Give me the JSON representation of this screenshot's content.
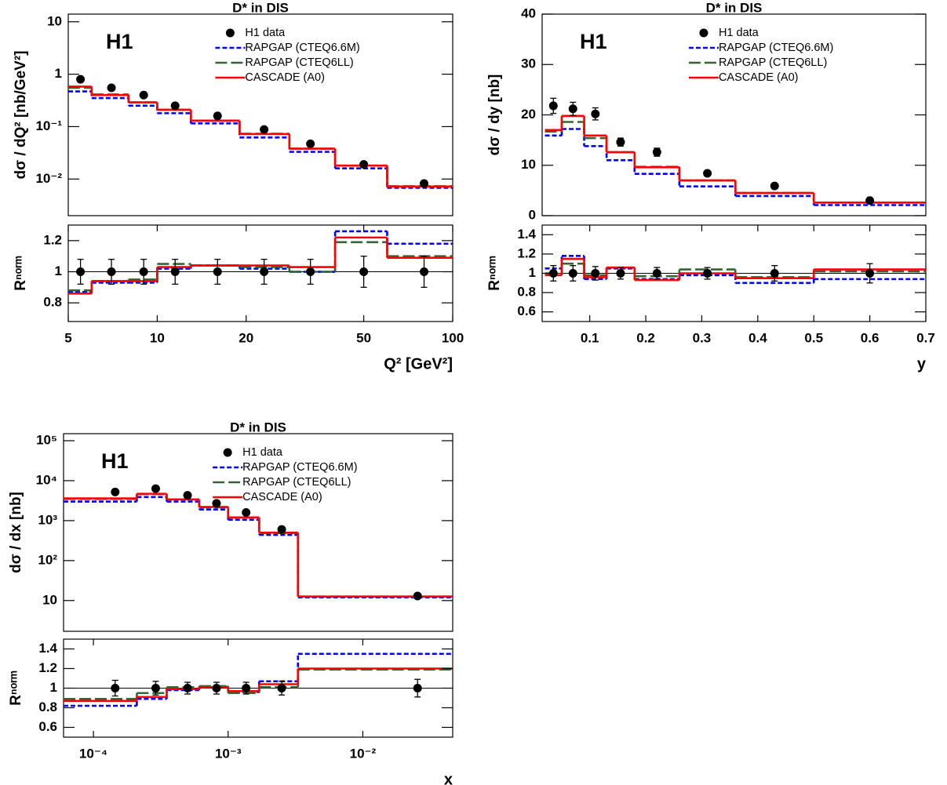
{
  "chart_data": [
    {
      "type": "histogram",
      "title": "D* in DIS",
      "label": "H1",
      "ylabel": "dσ / dQ² [nb/GeV²]",
      "xlog": true,
      "ylog": true,
      "xlim": [
        5,
        100
      ],
      "ylim": [
        0.002,
        14
      ],
      "yticks": [
        {
          "value": 0.01,
          "label": "10⁻²"
        },
        {
          "value": 0.1,
          "label": "10⁻¹"
        },
        1,
        10
      ],
      "legend": "top-right",
      "bins": [
        5,
        6,
        8,
        10,
        13,
        19,
        28,
        40,
        60,
        100
      ],
      "points": {
        "name": "H1 data",
        "color": "#000000",
        "x": [
          5.5,
          7,
          9,
          11.5,
          16,
          23,
          33,
          50,
          80
        ],
        "values": [
          0.8,
          0.55,
          0.4,
          0.25,
          0.16,
          0.088,
          0.047,
          0.019,
          0.0082
        ],
        "errors": [
          0.06,
          0.04,
          0.03,
          0.02,
          0.012,
          0.007,
          0.004,
          0.0015,
          0.0007
        ]
      },
      "series": [
        {
          "name": "RAPGAP (CTEQ6.6M)",
          "color": "#0000ff",
          "dash": "short",
          "values": [
            0.47,
            0.35,
            0.25,
            0.18,
            0.115,
            0.062,
            0.033,
            0.016,
            0.0068
          ]
        },
        {
          "name": "RAPGAP (CTEQ6LL)",
          "color": "#336633",
          "dash": "long",
          "values": [
            0.55,
            0.41,
            0.29,
            0.21,
            0.13,
            0.073,
            0.038,
            0.018,
            0.0073
          ]
        },
        {
          "name": "CASCADE (A0)",
          "color": "#ff0000",
          "dash": "solid",
          "values": [
            0.58,
            0.4,
            0.29,
            0.21,
            0.13,
            0.072,
            0.038,
            0.018,
            0.0072
          ]
        }
      ]
    },
    {
      "type": "histogram",
      "ylabel": "Rⁿᵒʳᵐ",
      "xlabel": "Q² [GeV²]",
      "xlog": true,
      "ylog": false,
      "xlim": [
        5,
        100
      ],
      "ylim": [
        0.68,
        1.3
      ],
      "xticks": [
        5,
        10,
        20,
        50,
        100
      ],
      "yticks": [
        0.8,
        1,
        1.2
      ],
      "hline": 1,
      "bins": [
        5,
        6,
        8,
        10,
        13,
        19,
        28,
        40,
        60,
        100
      ],
      "points": {
        "color": "#000000",
        "x": [
          5.5,
          7,
          9,
          11.5,
          16,
          23,
          33,
          50,
          80
        ],
        "values": [
          1,
          1,
          1,
          1,
          1,
          1,
          1,
          1,
          1
        ],
        "errors": [
          0.08,
          0.08,
          0.08,
          0.08,
          0.08,
          0.08,
          0.08,
          0.1,
          0.1
        ]
      },
      "series": [
        {
          "color": "#0000ff",
          "dash": "short",
          "values": [
            0.87,
            0.93,
            0.93,
            1.02,
            1.04,
            1.02,
            1.0,
            1.26,
            1.18
          ]
        },
        {
          "color": "#336633",
          "dash": "long",
          "values": [
            0.88,
            0.94,
            0.95,
            1.05,
            1.04,
            1.03,
            1.0,
            1.19,
            1.1
          ]
        },
        {
          "color": "#ff0000",
          "dash": "solid",
          "values": [
            0.86,
            0.94,
            0.94,
            1.03,
            1.04,
            1.04,
            1.03,
            1.22,
            1.09
          ]
        }
      ]
    },
    {
      "type": "histogram",
      "title": "D* in DIS",
      "label": "H1",
      "ylabel": "dσ / dy [nb]",
      "xlog": false,
      "ylog": false,
      "xlim": [
        0.015,
        0.7
      ],
      "ylim": [
        0,
        40
      ],
      "yticks": [
        0,
        10,
        20,
        30,
        40
      ],
      "legend": "top-right",
      "bins": [
        0.02,
        0.05,
        0.09,
        0.13,
        0.18,
        0.26,
        0.36,
        0.5,
        0.7
      ],
      "points": {
        "name": "H1 data",
        "color": "#000000",
        "x": [
          0.035,
          0.07,
          0.11,
          0.155,
          0.22,
          0.31,
          0.43,
          0.6
        ],
        "values": [
          21.8,
          21.2,
          20.2,
          14.6,
          12.6,
          8.4,
          5.9,
          3.0
        ],
        "errors": [
          1.5,
          1.3,
          1.2,
          0.8,
          0.8,
          0.4,
          0.4,
          0.3
        ]
      },
      "series": [
        {
          "name": "RAPGAP (CTEQ6.6M)",
          "color": "#0000ff",
          "dash": "short",
          "values": [
            15.9,
            17.2,
            13.8,
            11.0,
            8.3,
            5.8,
            3.9,
            2.1
          ]
        },
        {
          "name": "RAPGAP (CTEQ6LL)",
          "color": "#336633",
          "dash": "long",
          "values": [
            16.7,
            18.6,
            15.4,
            12.6,
            9.7,
            7.0,
            4.5,
            2.6
          ]
        },
        {
          "name": "CASCADE (A0)",
          "color": "#ff0000",
          "dash": "solid",
          "values": [
            17.0,
            19.8,
            15.9,
            12.6,
            9.6,
            7.0,
            4.5,
            2.6
          ]
        }
      ]
    },
    {
      "type": "histogram",
      "ylabel": "Rⁿᵒʳᵐ",
      "xlabel": "y",
      "xlog": false,
      "ylog": false,
      "xlim": [
        0.015,
        0.7
      ],
      "ylim": [
        0.5,
        1.5
      ],
      "xticks": [
        0.1,
        0.2,
        0.3,
        0.4,
        0.5,
        0.6,
        0.7
      ],
      "yticks": [
        0.6,
        0.8,
        1,
        1.2,
        1.4
      ],
      "hline": 1,
      "bins": [
        0.02,
        0.05,
        0.09,
        0.13,
        0.18,
        0.26,
        0.36,
        0.5,
        0.7
      ],
      "points": {
        "color": "#000000",
        "x": [
          0.035,
          0.07,
          0.11,
          0.155,
          0.22,
          0.31,
          0.43,
          0.6
        ],
        "values": [
          1,
          1,
          1,
          1,
          1,
          1,
          1,
          1
        ],
        "errors": [
          0.08,
          0.08,
          0.07,
          0.06,
          0.06,
          0.06,
          0.08,
          0.1
        ]
      },
      "series": [
        {
          "color": "#0000ff",
          "dash": "short",
          "values": [
            1.05,
            1.18,
            0.94,
            1.05,
            0.94,
            0.98,
            0.9,
            0.94
          ]
        },
        {
          "color": "#336633",
          "dash": "long",
          "values": [
            1.0,
            1.1,
            0.98,
            1.06,
            0.97,
            1.04,
            0.96,
            1.02
          ]
        },
        {
          "color": "#ff0000",
          "dash": "solid",
          "values": [
            0.98,
            1.15,
            0.96,
            1.06,
            0.93,
            1.0,
            0.95,
            1.04
          ]
        }
      ]
    },
    {
      "type": "histogram",
      "title": "D* in DIS",
      "label": "H1",
      "ylabel": "dσ / dx [nb]",
      "xlog": true,
      "ylog": true,
      "xlim": [
        6e-05,
        0.0465
      ],
      "ylim": [
        1.7,
        150000
      ],
      "yticks": [
        10,
        {
          "value": 100,
          "label": "10²"
        },
        {
          "value": 1000,
          "label": "10³"
        },
        {
          "value": 10000,
          "label": "10⁴"
        },
        {
          "value": 100000,
          "label": "10⁵"
        }
      ],
      "legend": "top-right",
      "bins": [
        6e-05,
        0.00021,
        0.00035,
        0.00061,
        0.001,
        0.0017,
        0.0033,
        0.0465
      ],
      "points": {
        "name": "H1 data",
        "color": "#000000",
        "x": [
          0.000145,
          0.00029,
          0.0005,
          0.00082,
          0.00136,
          0.0025,
          0.0255
        ],
        "values": [
          5200,
          6300,
          4300,
          2700,
          1600,
          600,
          13
        ],
        "errors": [
          400,
          450,
          300,
          200,
          120,
          50,
          1.2
        ]
      },
      "series": [
        {
          "name": "RAPGAP (CTEQ6.6M)",
          "color": "#0000ff",
          "dash": "short",
          "values": [
            3000,
            3900,
            3000,
            1900,
            1050,
            440,
            12
          ]
        },
        {
          "name": "RAPGAP (CTEQ6LL)",
          "color": "#336633",
          "dash": "long",
          "values": [
            3500,
            4600,
            3400,
            2150,
            1200,
            490,
            12.6
          ]
        },
        {
          "name": "CASCADE (A0)",
          "color": "#ff0000",
          "dash": "solid",
          "values": [
            3600,
            4700,
            3400,
            2200,
            1200,
            500,
            12.6
          ]
        }
      ]
    },
    {
      "type": "histogram",
      "ylabel": "Rⁿᵒʳᵐ",
      "xlabel": "x",
      "xlog": true,
      "ylog": false,
      "xlim": [
        6e-05,
        0.0465
      ],
      "ylim": [
        0.5,
        1.5
      ],
      "xticks": [
        {
          "value": 0.0001,
          "label": "10⁻⁴"
        },
        {
          "value": 0.001,
          "label": "10⁻³"
        },
        {
          "value": 0.01,
          "label": "10⁻²"
        }
      ],
      "yticks": [
        0.6,
        0.8,
        1,
        1.2,
        1.4
      ],
      "hline": 1,
      "bins": [
        6e-05,
        0.00021,
        0.00035,
        0.00061,
        0.001,
        0.0017,
        0.0033,
        0.0465
      ],
      "points": {
        "color": "#000000",
        "x": [
          0.000145,
          0.00029,
          0.0005,
          0.00082,
          0.00136,
          0.0025,
          0.0255
        ],
        "values": [
          1,
          1,
          1,
          1,
          1,
          1,
          1
        ],
        "errors": [
          0.08,
          0.07,
          0.06,
          0.06,
          0.06,
          0.07,
          0.09
        ]
      },
      "series": [
        {
          "color": "#0000ff",
          "dash": "short",
          "values": [
            0.82,
            0.89,
            0.98,
            1.02,
            0.96,
            1.07,
            1.35
          ]
        },
        {
          "color": "#336633",
          "dash": "long",
          "values": [
            0.89,
            0.95,
            1.01,
            1.02,
            0.95,
            1.01,
            1.19
          ]
        },
        {
          "color": "#ff0000",
          "dash": "solid",
          "values": [
            0.87,
            0.91,
            0.99,
            1.01,
            0.97,
            1.04,
            1.2
          ]
        }
      ]
    }
  ]
}
